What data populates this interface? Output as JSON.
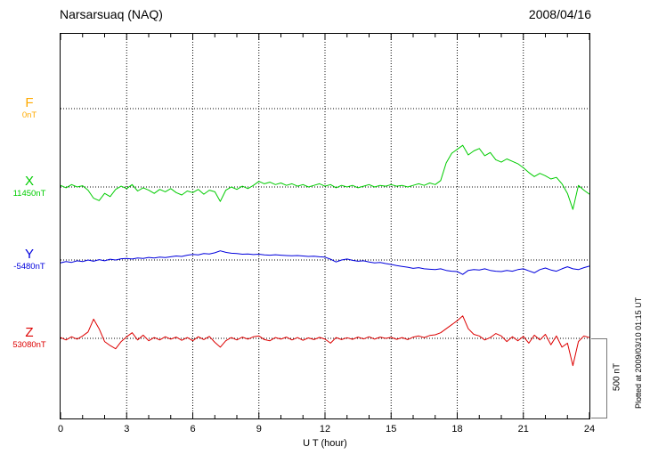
{
  "header": {
    "title": "Narsarsuaq (NAQ)",
    "date": "2008/04/16"
  },
  "axis": {
    "x_label": "U T (hour)",
    "x_ticks": [
      "0",
      "3",
      "6",
      "9",
      "12",
      "15",
      "18",
      "21",
      "24"
    ],
    "x_min": 0,
    "x_max": 24
  },
  "scale_bar": {
    "label": "500 nT",
    "span_nT": 500
  },
  "footer_note": "Plotted at 2009/03/10 01:15 UT",
  "chart_data": {
    "type": "line",
    "title": "Narsarsuaq (NAQ) magnetogram 2008/04/16",
    "xlabel": "U T (hour)",
    "x_range": [
      0,
      24
    ],
    "x_step_hours": 0.25,
    "scale_bar_nT": 500,
    "grid": "dotted horizontal line at each component baseline; dotted vertical line every 3 hours",
    "legend_position": "left margin, one colored letter with baseline value per component",
    "series": [
      {
        "name": "F",
        "baseline_label": "0nT",
        "baseline_nT": 0,
        "color": "#ffaa00",
        "offsets_nT": []
      },
      {
        "name": "X",
        "baseline_label": "11450nT",
        "baseline_nT": 11450,
        "color": "#00cc00",
        "offsets_nT": [
          10,
          -5,
          15,
          0,
          8,
          -20,
          -70,
          -85,
          -40,
          -60,
          -15,
          5,
          -10,
          15,
          -25,
          -5,
          -20,
          -40,
          -15,
          -30,
          -10,
          -35,
          -50,
          -25,
          -35,
          -15,
          -45,
          -20,
          -30,
          -90,
          -20,
          0,
          -15,
          5,
          -10,
          10,
          35,
          20,
          30,
          15,
          25,
          10,
          20,
          5,
          15,
          0,
          10,
          20,
          5,
          15,
          -5,
          10,
          0,
          10,
          -5,
          5,
          15,
          0,
          10,
          5,
          15,
          5,
          10,
          0,
          10,
          20,
          10,
          25,
          15,
          40,
          150,
          210,
          235,
          260,
          200,
          225,
          240,
          195,
          215,
          170,
          155,
          175,
          160,
          145,
          120,
          90,
          65,
          85,
          70,
          50,
          60,
          20,
          -40,
          -140,
          10,
          -20,
          -45
        ]
      },
      {
        "name": "Y",
        "baseline_label": "-5480nT",
        "baseline_nT": -5480,
        "color": "#0000dd",
        "offsets_nT": [
          -18,
          -10,
          -15,
          -5,
          -10,
          0,
          -8,
          2,
          -5,
          5,
          0,
          8,
          10,
          6,
          12,
          10,
          16,
          12,
          18,
          15,
          20,
          25,
          22,
          30,
          35,
          32,
          40,
          38,
          45,
          57,
          48,
          42,
          40,
          36,
          38,
          34,
          36,
          32,
          30,
          33,
          30,
          28,
          26,
          28,
          25,
          22,
          24,
          20,
          18,
          5,
          -12,
          0,
          6,
          -2,
          -8,
          -5,
          -12,
          -18,
          -15,
          -22,
          -28,
          -35,
          -40,
          -45,
          -52,
          -48,
          -55,
          -58,
          -60,
          -55,
          -65,
          -70,
          -72,
          -90,
          -65,
          -60,
          -62,
          -55,
          -65,
          -70,
          -72,
          -65,
          -70,
          -60,
          -55,
          -68,
          -80,
          -60,
          -50,
          -62,
          -70,
          -55,
          -42,
          -55,
          -60,
          -48,
          -38
        ]
      },
      {
        "name": "Z",
        "baseline_label": "53080nT",
        "baseline_nT": 53080,
        "color": "#dd0000",
        "offsets_nT": [
          5,
          -10,
          10,
          -5,
          15,
          40,
          120,
          60,
          -20,
          -45,
          -65,
          -20,
          10,
          35,
          -10,
          20,
          -15,
          5,
          -10,
          10,
          -5,
          8,
          -12,
          5,
          -15,
          10,
          -8,
          12,
          -25,
          -55,
          -15,
          5,
          -10,
          8,
          -5,
          10,
          15,
          -8,
          -15,
          5,
          -5,
          8,
          -10,
          5,
          -12,
          3,
          -8,
          6,
          -5,
          -30,
          5,
          -8,
          4,
          -6,
          8,
          -4,
          10,
          -5,
          8,
          0,
          6,
          -6,
          5,
          -8,
          8,
          15,
          5,
          18,
          22,
          35,
          60,
          85,
          110,
          140,
          60,
          25,
          15,
          -10,
          5,
          30,
          15,
          -20,
          10,
          -15,
          12,
          -30,
          20,
          -10,
          25,
          -40,
          15,
          -55,
          -30,
          -170,
          -20,
          15,
          5
        ]
      }
    ]
  }
}
